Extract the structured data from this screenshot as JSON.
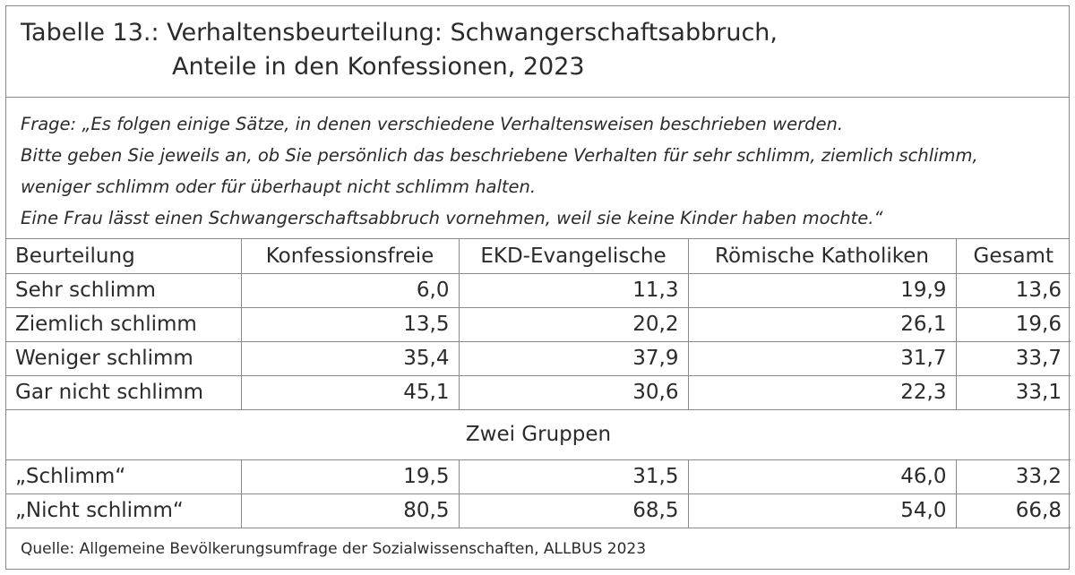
{
  "title": {
    "line1": "Tabelle 13.: Verhaltensbeurteilung: Schwangerschaftsabbruch,",
    "line2": "Anteile in den Konfessionen, 2023"
  },
  "question": {
    "lines": [
      "Frage: „Es folgen einige Sätze, in denen verschiedene Verhaltensweisen beschrieben werden.",
      "Bitte geben Sie jeweils an, ob Sie persönlich das beschriebene Verhalten für sehr schlimm, ziemlich schlimm,",
      "weniger schlimm oder für überhaupt nicht schlimm halten.",
      "Eine Frau lässt einen Schwangerschaftsabbruch vornehmen, weil sie keine Kinder haben mochte.“"
    ]
  },
  "table": {
    "headers": [
      "Beurteilung",
      "Konfessionsfreie",
      "EKD-Evangelische",
      "Römische Katholiken",
      "Gesamt"
    ],
    "rows": [
      [
        "Sehr schlimm",
        "6,0",
        "11,3",
        "19,9",
        "13,6"
      ],
      [
        "Ziemlich schlimm",
        "13,5",
        "20,2",
        "26,1",
        "19,6"
      ],
      [
        "Weniger schlimm",
        "35,4",
        "37,9",
        "31,7",
        "33,7"
      ],
      [
        "Gar nicht schlimm",
        "45,1",
        "30,6",
        "22,3",
        "33,1"
      ]
    ],
    "group_label": "Zwei Gruppen",
    "group_rows": [
      [
        "„Schlimm“",
        "19,5",
        "31,5",
        "46,0",
        "33,2"
      ],
      [
        "„Nicht schlimm“",
        "80,5",
        "68,5",
        "54,0",
        "66,8"
      ]
    ]
  },
  "source": "Quelle: Allgemeine Bevölkerungsumfrage der Sozialwissenschaften, ALLBUS 2023"
}
